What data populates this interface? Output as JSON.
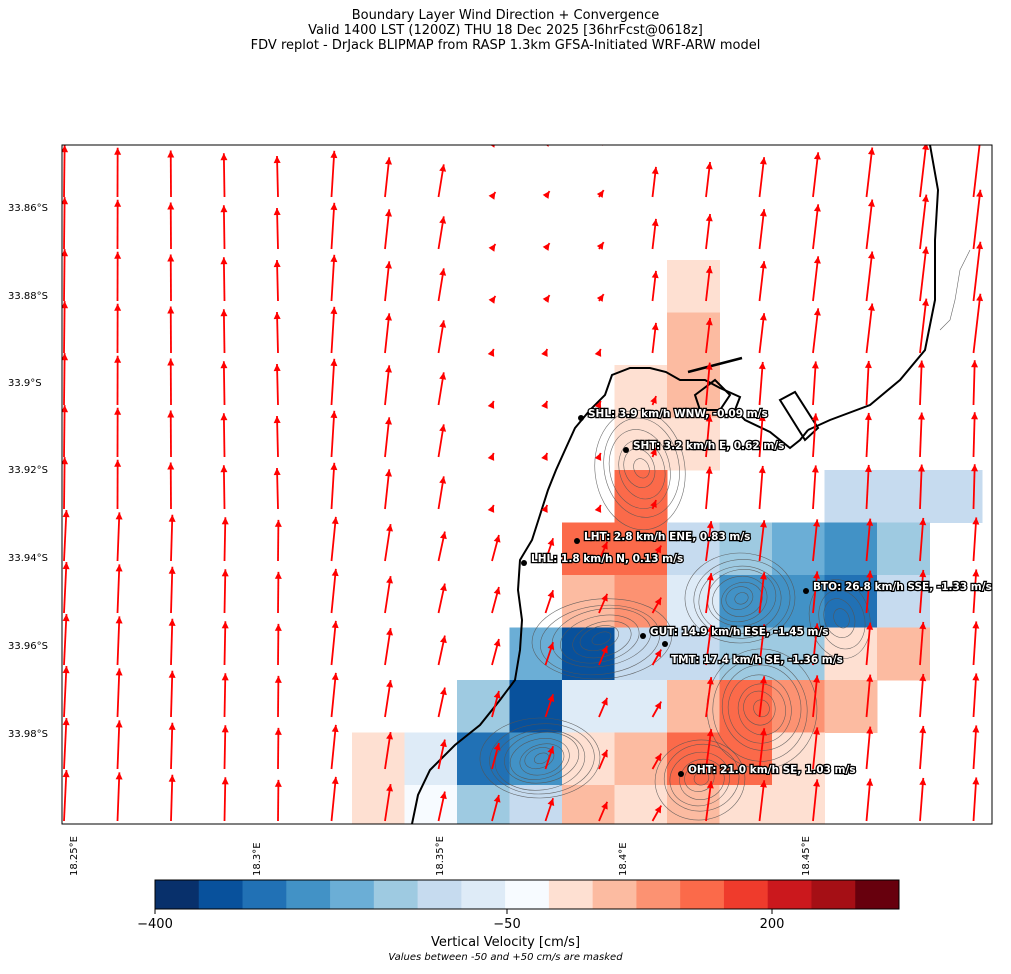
{
  "title": {
    "line1": "Boundary Layer Wind Direction + Convergence",
    "line2": "Valid 1400 LST (1200Z) THU 18 Dec 2025 [36hrFcst@0618z]",
    "line3": "FDV replot - DrJack BLIPMAP from RASP 1.3km GFSA-Initiated WRF-ARW model"
  },
  "lat_labels": [
    "33.86°S",
    "33.88°S",
    "33.9°S",
    "33.92°S",
    "33.94°S",
    "33.96°S",
    "33.98°S"
  ],
  "lon_labels": [
    "18.25°E",
    "18.3°E",
    "18.35°E",
    "18.4°E",
    "18.45°E"
  ],
  "stations": [
    {
      "code": "SHL",
      "label": "SHL: 3.9 km/h WNW, -0.09 m/s"
    },
    {
      "code": "SHT",
      "label": "SHT: 3.2 km/h E, 0.62 m/s"
    },
    {
      "code": "LHT",
      "label": "LHT: 2.8 km/h ENE, 0.83 m/s"
    },
    {
      "code": "LHL",
      "label": "LHL: 1.8 km/h N, 0.13 m/s"
    },
    {
      "code": "BTO",
      "label": "BTO: 26.8 km/h SSE, -1.33 m/s"
    },
    {
      "code": "GUT",
      "label": "GUT: 14.9 km/h ESE, -1.45 m/s"
    },
    {
      "code": "TMT",
      "label": "TMT: 17.4 km/h SE, -1.36 m/s"
    },
    {
      "code": "OHT",
      "label": "OHT: 21.0 km/h SE, 1.03 m/s"
    }
  ],
  "colorbar": {
    "ticks": [
      "−400",
      "−50",
      "200"
    ],
    "label": "Vertical Velocity [cm/s]",
    "note": "Values between -50 and +50 cm/s are masked",
    "colors": [
      "#08306b",
      "#08519c",
      "#2171b5",
      "#4292c6",
      "#6baed6",
      "#9ecae1",
      "#c6dbef",
      "#deebf7",
      "#f7fbff",
      "#fee0d2",
      "#fcbba1",
      "#fc9272",
      "#fb6a4a",
      "#ef3b2c",
      "#cb181d",
      "#a50f15",
      "#67000d"
    ]
  },
  "colors": {
    "wind_arrow": "#ff0000",
    "coastline": "#000000",
    "terrain_contour": "#555555"
  }
}
